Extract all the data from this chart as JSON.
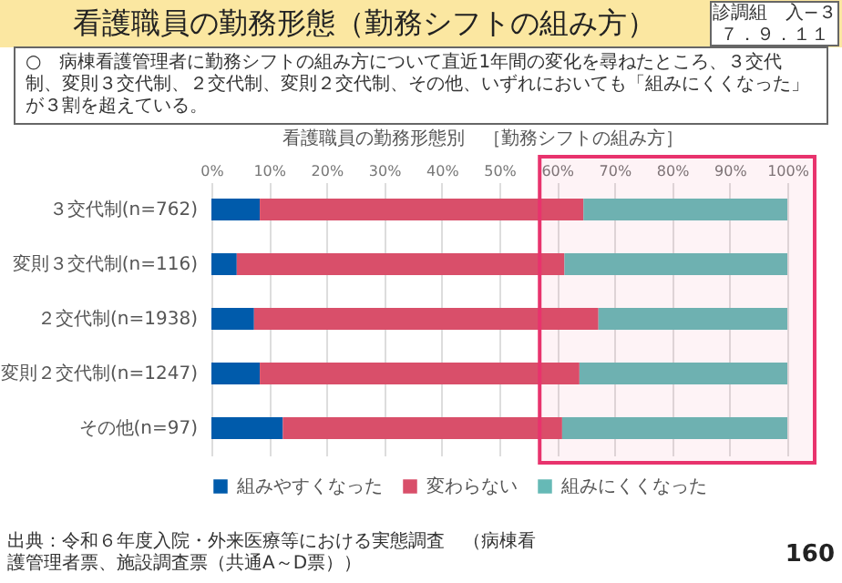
{
  "chart_data": {
    "type": "bar",
    "orientation": "horizontal",
    "stacked": true,
    "title": "看護職員の勤務形態（勤務シフトの組み方）",
    "subtitle": "○　病棟看護管理者に勤務シフトの組み方について直近1年間の変化を尋ねたところ、３交代制、変則３交代制、２交代制、変則２交代制、その他、いずれにおいても「組みにくくなった」が３割を超えている。",
    "categories": [
      "３交代制(n=762)",
      "変則３交代制(n=116)",
      "２交代制(n=1938)",
      "変則２交代制(n=1247)",
      "その他(n=97)"
    ],
    "series": [
      {
        "name": "組みやすくなった",
        "color": "#005bab",
        "values": [
          8.4,
          4.4,
          7.4,
          8.4,
          12.4
        ]
      },
      {
        "name": "変わらない",
        "color": "#d94f6a",
        "values": [
          56.2,
          56.9,
          59.8,
          55.5,
          48.5
        ]
      },
      {
        "name": "組みにくくなった",
        "color": "#66b9b6",
        "values": [
          35.4,
          38.7,
          32.8,
          36.1,
          39.1
        ]
      }
    ],
    "xlim": [
      0,
      100
    ],
    "xticks": [
      {
        "value": 0,
        "label": "0%"
      },
      {
        "value": 10,
        "label": "10%"
      },
      {
        "value": 20,
        "label": "20%"
      },
      {
        "value": 30,
        "label": "30%"
      },
      {
        "value": 40,
        "label": "40%"
      },
      {
        "value": 50,
        "label": "50%"
      },
      {
        "value": 60,
        "label": "60%"
      },
      {
        "value": 70,
        "label": "70%"
      },
      {
        "value": 80,
        "label": "80%"
      },
      {
        "value": 90,
        "label": "90%"
      },
      {
        "value": 100,
        "label": "100%"
      }
    ],
    "grid": "x",
    "legend": "bottom",
    "bands": [
      {
        "axis": "x",
        "from": 57,
        "to": 100,
        "color": "#e8336d"
      }
    ],
    "annotations": [
      "看護職員の勤務形態別　［勤務シフトの組み方］",
      "診調組　入−３",
      "７．９．１１",
      "出典：令和６年度入院・外来医療等における実態調査　（病棟看護管理者票、施設調査票（共通A～D票））",
      "160"
    ]
  }
}
